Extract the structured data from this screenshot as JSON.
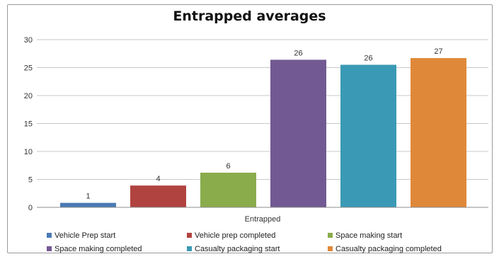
{
  "chart_data": {
    "type": "bar",
    "title": "Entrapped averages",
    "categories": [
      "Entrapped"
    ],
    "ylim": [
      0,
      30
    ],
    "yticks": [
      0,
      5,
      10,
      15,
      20,
      25,
      30
    ],
    "grid": true,
    "legend_position": "bottom",
    "series": [
      {
        "name": "Vehicle Prep start",
        "value": 0.8,
        "label": "1",
        "color": "#4a7ab5"
      },
      {
        "name": "Vehicle prep completed",
        "value": 3.9,
        "label": "4",
        "color": "#b0433f"
      },
      {
        "name": "Space making start",
        "value": 6.2,
        "label": "6",
        "color": "#8aac4b"
      },
      {
        "name": "Space making completed",
        "value": 26.4,
        "label": "26",
        "color": "#735993"
      },
      {
        "name": "Casualty packaging start",
        "value": 25.5,
        "label": "26",
        "color": "#3a9ab5"
      },
      {
        "name": "Casualty packaging completed",
        "value": 26.7,
        "label": "27",
        "color": "#e0883a"
      }
    ]
  }
}
